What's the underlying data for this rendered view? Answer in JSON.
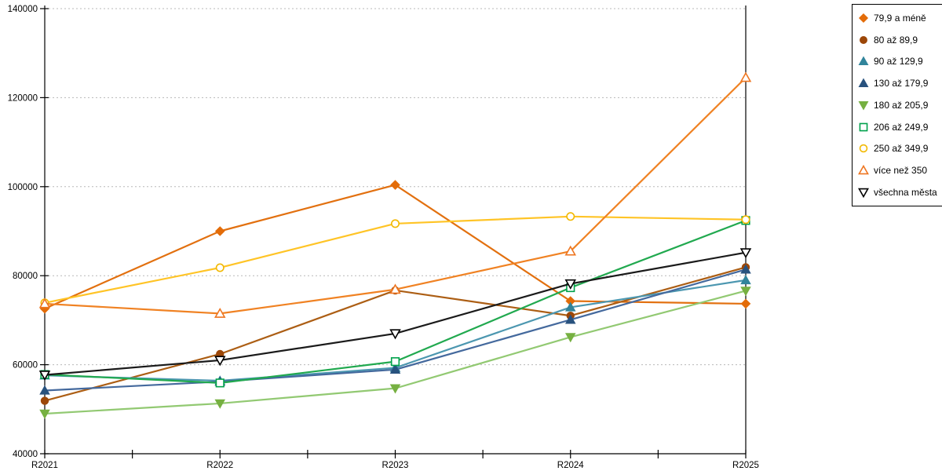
{
  "chart_data": {
    "type": "line",
    "title": "",
    "xlabel": "",
    "ylabel": "",
    "x": [
      "R2021",
      "R2022",
      "R2023",
      "R2024",
      "R2025"
    ],
    "ylim": [
      40000,
      140000
    ],
    "ytick_step": 20000,
    "ytick_labels": [
      "40000",
      "60000",
      "80000",
      "100000",
      "120000",
      "140000"
    ],
    "grid": "horizontal-dashed",
    "grid_color": "#b8b8b8",
    "axis_color": "#000000",
    "legend_position": "top-right",
    "series": [
      {
        "name": "79,9 a méně",
        "marker": "diamond",
        "fill": "filled",
        "color": "#E36C09",
        "line_color": "#E2700F",
        "values": [
          72600,
          90000,
          100400,
          74300,
          73700
        ]
      },
      {
        "name": "80 až 89,9",
        "marker": "circle",
        "fill": "filled",
        "color": "#9C4708",
        "line_color": "#AC5E14",
        "values": [
          51900,
          62400,
          76700,
          71000,
          81900
        ]
      },
      {
        "name": "90 až 129,9",
        "marker": "triangle-up",
        "fill": "filled",
        "color": "#31849B",
        "line_color": "#4C97B0",
        "values": [
          57600,
          56400,
          59300,
          72900,
          79000
        ]
      },
      {
        "name": "130 až 179,9",
        "marker": "triangle-up",
        "fill": "filled",
        "color": "#28527E",
        "line_color": "#44699D",
        "values": [
          54200,
          56200,
          58900,
          70100,
          81400
        ]
      },
      {
        "name": "180 až 205,9",
        "marker": "triangle-down",
        "fill": "filled",
        "color": "#76B041",
        "line_color": "#92C972",
        "values": [
          49000,
          51300,
          54700,
          66200,
          76600
        ]
      },
      {
        "name": "206 až 249,9",
        "marker": "square",
        "fill": "open",
        "color": "#00A14B",
        "line_color": "#21A94F",
        "values": [
          57800,
          55900,
          60700,
          77300,
          92400
        ]
      },
      {
        "name": "250 až 349,9",
        "marker": "circle",
        "fill": "open",
        "color": "#F2B800",
        "line_color": "#FFC426",
        "values": [
          73900,
          81800,
          91700,
          93300,
          92600
        ]
      },
      {
        "name": "více než 350",
        "marker": "triangle-up",
        "fill": "open",
        "color": "#EE7621",
        "line_color": "#F08223",
        "values": [
          73700,
          71500,
          76900,
          85500,
          124500
        ]
      },
      {
        "name": "všechna města",
        "marker": "triangle-down",
        "fill": "open",
        "color": "#000000",
        "line_color": "#1A1A1A",
        "values": [
          57700,
          61000,
          67000,
          78200,
          85200
        ]
      }
    ]
  }
}
